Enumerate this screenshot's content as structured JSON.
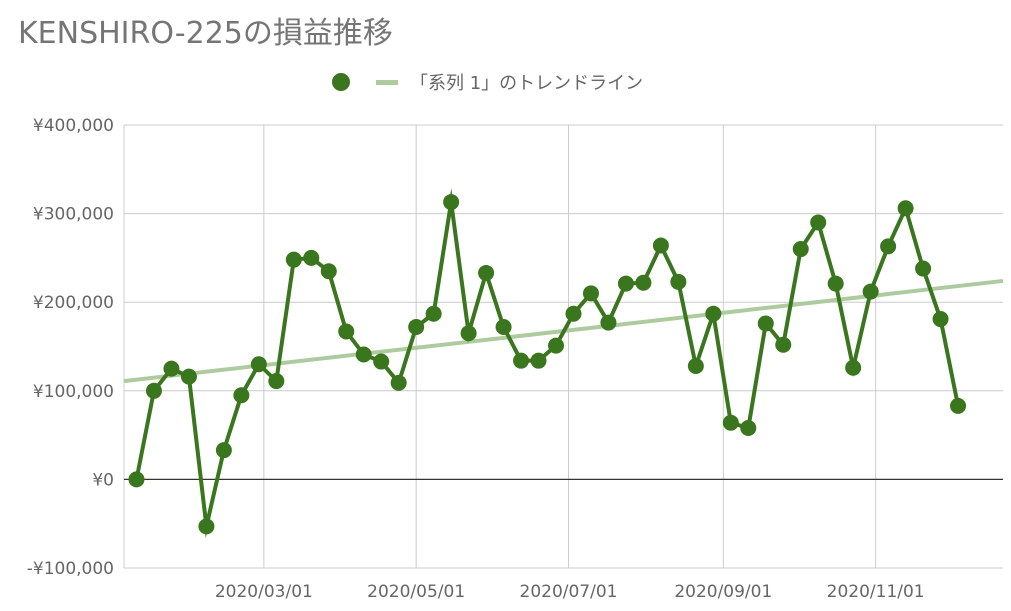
{
  "chart_data": {
    "type": "line",
    "title": "KENSHIRO-225の損益推移",
    "xlabel": "",
    "ylabel": "",
    "ylim": [
      -100000,
      400000
    ],
    "y_ticks": [
      -100000,
      0,
      100000,
      200000,
      300000,
      400000
    ],
    "y_tick_labels": [
      "-¥100,000",
      "¥0",
      "¥100,000",
      "¥200,000",
      "¥300,000",
      "¥400,000"
    ],
    "xlim": [
      "2020-01-05",
      "2020-12-22"
    ],
    "x_ticks": [
      "2020-03-01",
      "2020-05-01",
      "2020-07-01",
      "2020-09-01",
      "2020-11-01"
    ],
    "x_tick_labels": [
      "2020/03/01",
      "2020/05/01",
      "2020/07/01",
      "2020/09/01",
      "2020/11/01"
    ],
    "grid": true,
    "legend_position": "top-center",
    "series": [
      {
        "name": "",
        "color": "#3a761d",
        "x": [
          "2020-01-10",
          "2020-01-17",
          "2020-01-24",
          "2020-01-31",
          "2020-02-07",
          "2020-02-14",
          "2020-02-21",
          "2020-02-28",
          "2020-03-06",
          "2020-03-13",
          "2020-03-20",
          "2020-03-27",
          "2020-04-03",
          "2020-04-10",
          "2020-04-17",
          "2020-04-24",
          "2020-05-01",
          "2020-05-08",
          "2020-05-15",
          "2020-05-22",
          "2020-05-29",
          "2020-06-05",
          "2020-06-12",
          "2020-06-19",
          "2020-06-26",
          "2020-07-03",
          "2020-07-10",
          "2020-07-17",
          "2020-07-24",
          "2020-07-31",
          "2020-08-07",
          "2020-08-14",
          "2020-08-21",
          "2020-08-28",
          "2020-09-04",
          "2020-09-11",
          "2020-09-18",
          "2020-09-25",
          "2020-10-02",
          "2020-10-09",
          "2020-10-16",
          "2020-10-23",
          "2020-10-30",
          "2020-11-06",
          "2020-11-13",
          "2020-11-20",
          "2020-11-27",
          "2020-12-04",
          "2020-12-11",
          "2020-12-18"
        ],
        "values": [
          0,
          100000,
          125000,
          116000,
          -53000,
          33000,
          95000,
          130000,
          111000,
          248000,
          250000,
          235000,
          167000,
          141000,
          133000,
          109000,
          172000,
          187000,
          313000,
          165000,
          233000,
          172000,
          134000,
          134000,
          151000,
          187000,
          210000,
          177000,
          221000,
          222000,
          264000,
          223000,
          128000,
          187000,
          64000,
          58000,
          176000,
          152000,
          260000,
          290000,
          221000,
          126000,
          212000,
          263000,
          306000,
          238000,
          181000,
          83000,
          null,
          null
        ]
      },
      {
        "name": "「系列 1」のトレンドライン",
        "color": "#aecb9f",
        "x": [
          "2020-01-05",
          "2020-12-22"
        ],
        "values": [
          111000,
          224000
        ]
      }
    ]
  }
}
